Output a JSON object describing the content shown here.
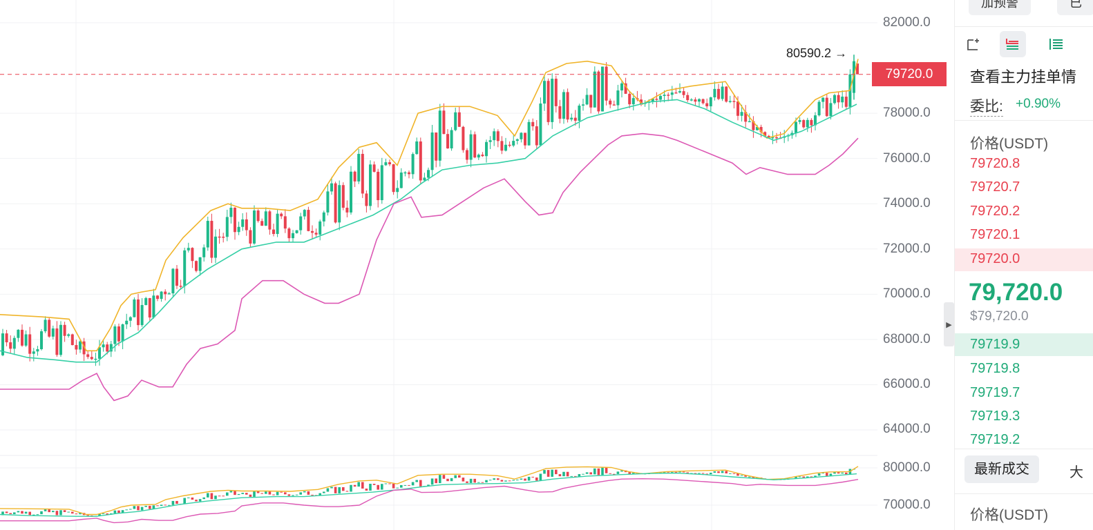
{
  "chart": {
    "y_axis_labels": [
      "82000.0",
      "78000.0",
      "76000.0",
      "74000.0",
      "72000.0",
      "70000.0",
      "68000.0",
      "66000.0",
      "64000.0"
    ],
    "volume_axis_labels": [
      "80000.0",
      "70000.0"
    ],
    "current_price_tag": "79720.0",
    "peak_label": "80590.2 →",
    "colors": {
      "up": "#1fb98b",
      "down": "#e8414f",
      "upper_band": "#f0b429",
      "middle_band": "#35cfa6",
      "lower_band": "#dc58b4",
      "price_line": "#e8414f"
    }
  },
  "chart_data": {
    "type": "candlestick",
    "ylim": [
      62500,
      83000
    ],
    "price_level": 79720.0,
    "peak": 80590.2,
    "series": [
      {
        "name": "upper",
        "x": [
          0,
          60,
          100,
          125,
          140,
          160,
          175,
          190,
          205,
          225,
          240,
          265,
          305,
          330,
          350,
          385,
          420,
          460,
          490,
          520,
          545,
          575,
          605,
          640,
          680,
          720,
          745,
          770,
          790,
          820,
          850,
          885,
          910,
          930,
          965,
          1000,
          1050,
          1080,
          1110,
          1135,
          1155,
          1180,
          1200,
          1230,
          1242
        ],
        "values": [
          69100,
          69000,
          68900,
          67500,
          67500,
          68500,
          69500,
          70000,
          70100,
          70200,
          71500,
          72500,
          73700,
          74000,
          73800,
          73800,
          73700,
          74200,
          75600,
          76500,
          76700,
          75700,
          78000,
          78300,
          78300,
          77900,
          77000,
          78500,
          79800,
          80200,
          80300,
          80100,
          79000,
          78400,
          79000,
          79200,
          79400,
          78000,
          76900,
          77100,
          77800,
          78600,
          78900,
          79000,
          80400
        ]
      },
      {
        "name": "middle",
        "x": [
          0,
          40,
          80,
          110,
          140,
          170,
          200,
          230,
          260,
          300,
          350,
          400,
          440,
          490,
          540,
          580,
          610,
          640,
          680,
          720,
          760,
          800,
          850,
          900,
          940,
          980,
          1020,
          1060,
          1090,
          1120,
          1160,
          1200,
          1240
        ],
        "values": [
          67500,
          67200,
          67100,
          67000,
          67000,
          67800,
          68300,
          69200,
          70200,
          71100,
          72000,
          72300,
          72300,
          72900,
          73500,
          74200,
          74900,
          75500,
          75700,
          75800,
          76000,
          77000,
          77800,
          78200,
          78500,
          78600,
          78200,
          77600,
          77200,
          76800,
          77200,
          77800,
          78400
        ]
      },
      {
        "name": "lower",
        "x": [
          0,
          30,
          60,
          80,
          100,
          120,
          140,
          150,
          165,
          185,
          205,
          230,
          250,
          270,
          290,
          315,
          340,
          350,
          380,
          410,
          440,
          470,
          490,
          520,
          545,
          570,
          595,
          610,
          640,
          670,
          700,
          730,
          760,
          780,
          800,
          815,
          840,
          880,
          900,
          930,
          960,
          980,
          1020,
          1060,
          1080,
          1100,
          1140,
          1180,
          1200,
          1220,
          1242
        ],
        "values": [
          65800,
          65800,
          65800,
          65800,
          65800,
          66200,
          66500,
          65900,
          65300,
          65500,
          66200,
          65900,
          65900,
          66900,
          67600,
          67800,
          68400,
          69800,
          70600,
          70600,
          70000,
          69600,
          69600,
          70000,
          72400,
          74000,
          74300,
          73400,
          73500,
          74100,
          74700,
          75100,
          74100,
          73500,
          73600,
          74500,
          75400,
          76600,
          77000,
          77100,
          77000,
          76800,
          76300,
          75800,
          75300,
          75600,
          75300,
          75300,
          75700,
          76200,
          76900
        ]
      }
    ],
    "volume_panel": {
      "ticks": [
        80000,
        70000
      ],
      "note_series_mirrored": true
    }
  },
  "panel": {
    "top_buttons": [
      "加预警",
      "已"
    ],
    "orderbook_title": "查看主力挂单情",
    "ratio_label": "委比:",
    "ratio_value": "+0.90%",
    "price_header": "价格(USDT)",
    "asks": [
      "79720.8",
      "79720.7",
      "79720.2",
      "79720.1",
      "79720.0"
    ],
    "last_price": "79,720.0",
    "last_price_usd": "$79,720.0",
    "bids": [
      "79719.9",
      "79719.8",
      "79719.7",
      "79719.3",
      "79719.2"
    ],
    "trades_tab": "最新成交",
    "trades_tab_next": "大",
    "trades_price_header": "价格(USDT)"
  }
}
